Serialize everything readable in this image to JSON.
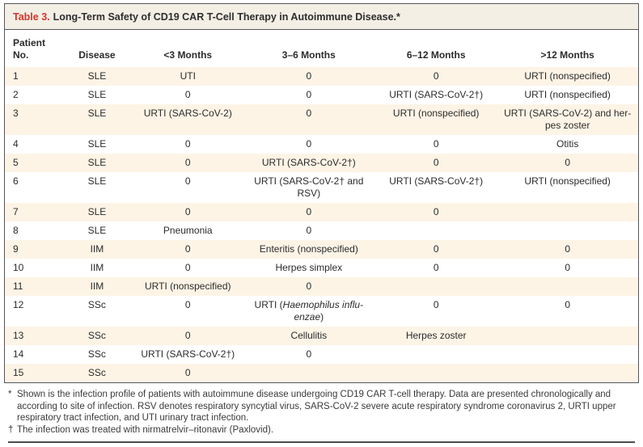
{
  "colors": {
    "red": "#d6332b",
    "stripe": "#fdf4e6",
    "titlebar": "#f4efe5",
    "border": "#55565a",
    "text": "#2b2b2b"
  },
  "table": {
    "label": "Table 3.",
    "title": "Long-Term Safety of CD19 CAR T-Cell Therapy in Autoimmune Disease.*",
    "columns": [
      "Patient\nNo.",
      "Disease",
      "<3 Months",
      "3–6 Months",
      "6–12 Months",
      ">12 Months"
    ],
    "rows": [
      [
        "1",
        "SLE",
        "UTI",
        "0",
        "0",
        "URTI (nonspecified)"
      ],
      [
        "2",
        "SLE",
        "0",
        "0",
        "URTI (SARS-CoV-2†)",
        "URTI (nonspecified)"
      ],
      [
        "3",
        "SLE",
        "URTI (SARS-CoV-2)",
        "0",
        "URTI (nonspecified)",
        "URTI (SARS-CoV-2) and her-\npes zoster"
      ],
      [
        "4",
        "SLE",
        "0",
        "0",
        "0",
        "Otitis"
      ],
      [
        "5",
        "SLE",
        "0",
        "URTI (SARS-CoV-2†)",
        "0",
        "0"
      ],
      [
        "6",
        "SLE",
        "0",
        "URTI (SARS-CoV-2† and\nRSV)",
        "URTI (SARS-CoV-2†)",
        "URTI (nonspecified)"
      ],
      [
        "7",
        "SLE",
        "0",
        "0",
        "0",
        ""
      ],
      [
        "8",
        "SLE",
        "Pneumonia",
        "0",
        "",
        ""
      ],
      [
        "9",
        "IIM",
        "0",
        "Enteritis (nonspecified)",
        "0",
        "0"
      ],
      [
        "10",
        "IIM",
        "0",
        "Herpes simplex",
        "0",
        "0"
      ],
      [
        "11",
        "IIM",
        "URTI (nonspecified)",
        "0",
        "",
        ""
      ],
      [
        "12",
        "SSc",
        "0",
        {
          "pre": "URTI (",
          "italic": "Haemophilus influ-\nenzae",
          "post": ")"
        },
        "0",
        "0"
      ],
      [
        "13",
        "SSc",
        "0",
        "Cellulitis",
        "Herpes zoster",
        ""
      ],
      [
        "14",
        "SSc",
        "URTI (SARS-CoV-2†)",
        "0",
        "",
        ""
      ],
      [
        "15",
        "SSc",
        "0",
        "",
        "",
        ""
      ]
    ]
  },
  "footnotes": [
    {
      "marker": "*",
      "text": "Shown is the infection profile of patients with autoimmune disease undergoing CD19 CAR T-cell therapy. Data are presented chronologically and according to site of infection. RSV denotes respiratory syncytial virus, SARS-CoV-2 severe acute respiratory syndrome coronavirus 2, URTI upper respiratory tract infection, and UTI urinary tract infection."
    },
    {
      "marker": "†",
      "text": "The infection was treated with nirmatrelvir–ritonavir (Paxlovid)."
    }
  ]
}
